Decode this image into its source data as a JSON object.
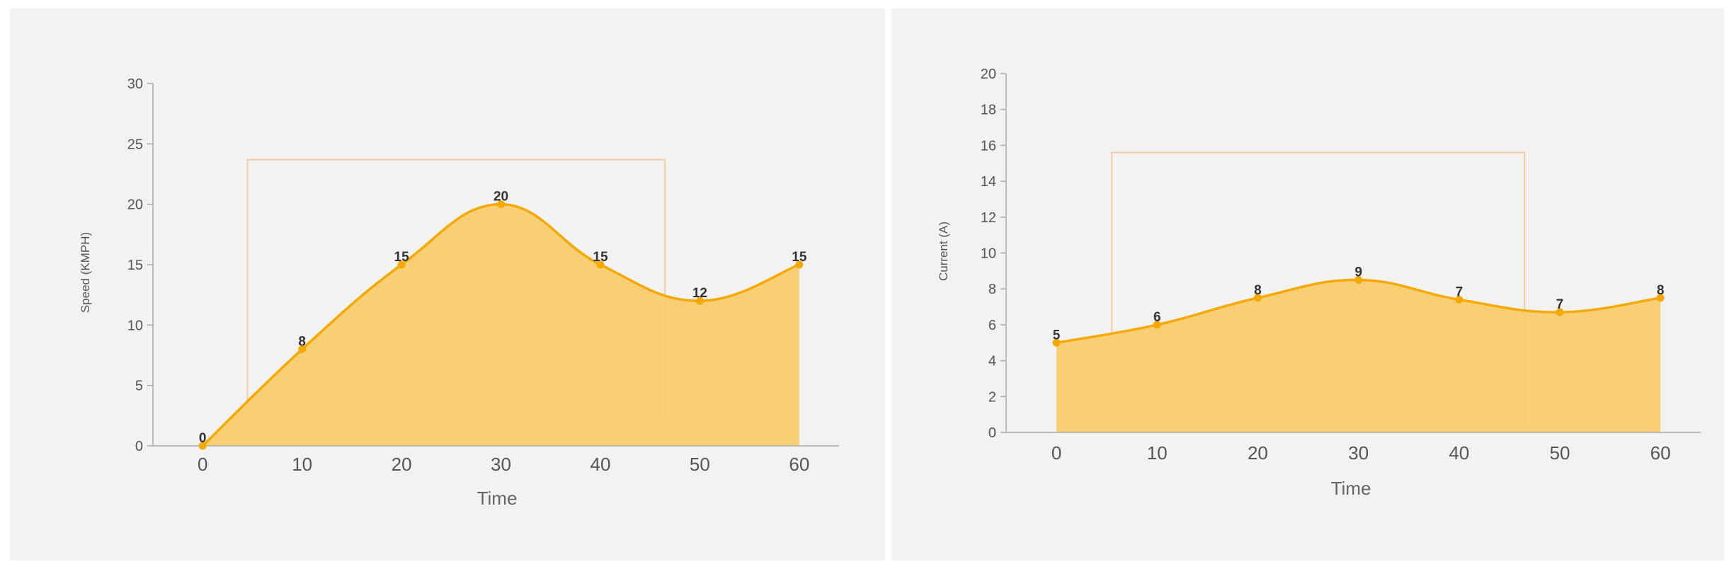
{
  "chart_data": [
    {
      "type": "area",
      "title": "",
      "xlabel": "Time",
      "ylabel": "Speed (KMPH)",
      "x": [
        0,
        10,
        20,
        30,
        40,
        50,
        60
      ],
      "x_ticks": [
        "0",
        "10",
        "20",
        "30",
        "40",
        "50",
        "60"
      ],
      "y_ticks": [
        "0",
        "5",
        "10",
        "15",
        "20",
        "25",
        "30"
      ],
      "xlim": [
        -5,
        64
      ],
      "ylim": [
        0,
        30
      ],
      "series": [
        {
          "values": [
            0,
            8,
            15,
            20,
            15,
            12,
            15
          ],
          "labels": [
            "0",
            "8",
            "15",
            "20",
            "15",
            "12",
            "15"
          ]
        }
      ],
      "highlight_box": {
        "x": [
          4.5,
          46.5
        ],
        "y": [
          2,
          23.7
        ]
      },
      "grid": false,
      "colors": {
        "fill": "#f9cc6e",
        "line": "#f5a800",
        "box": "#f8c9a0",
        "axis": "#aaaaaa"
      }
    },
    {
      "type": "area",
      "title": "",
      "xlabel": "Time",
      "ylabel": "Current (A)",
      "x": [
        0,
        10,
        20,
        30,
        40,
        50,
        60
      ],
      "x_ticks": [
        "0",
        "10",
        "20",
        "30",
        "40",
        "50",
        "60"
      ],
      "y_ticks": [
        "0",
        "2",
        "4",
        "6",
        "8",
        "10",
        "12",
        "14",
        "16",
        "18",
        "20"
      ],
      "xlim": [
        -5,
        64
      ],
      "ylim": [
        0,
        20
      ],
      "series": [
        {
          "values": [
            5,
            6,
            7.5,
            8.5,
            7.4,
            6.7,
            7.5
          ],
          "labels": [
            "5",
            "6",
            "8",
            "9",
            "7",
            "7",
            "8"
          ]
        }
      ],
      "highlight_box": {
        "x": [
          5.5,
          46.5
        ],
        "y": [
          0.3,
          15.6
        ]
      },
      "grid": false,
      "colors": {
        "fill": "#f9cc6e",
        "line": "#f5a800",
        "box": "#f8c9a0",
        "axis": "#aaaaaa"
      }
    }
  ]
}
